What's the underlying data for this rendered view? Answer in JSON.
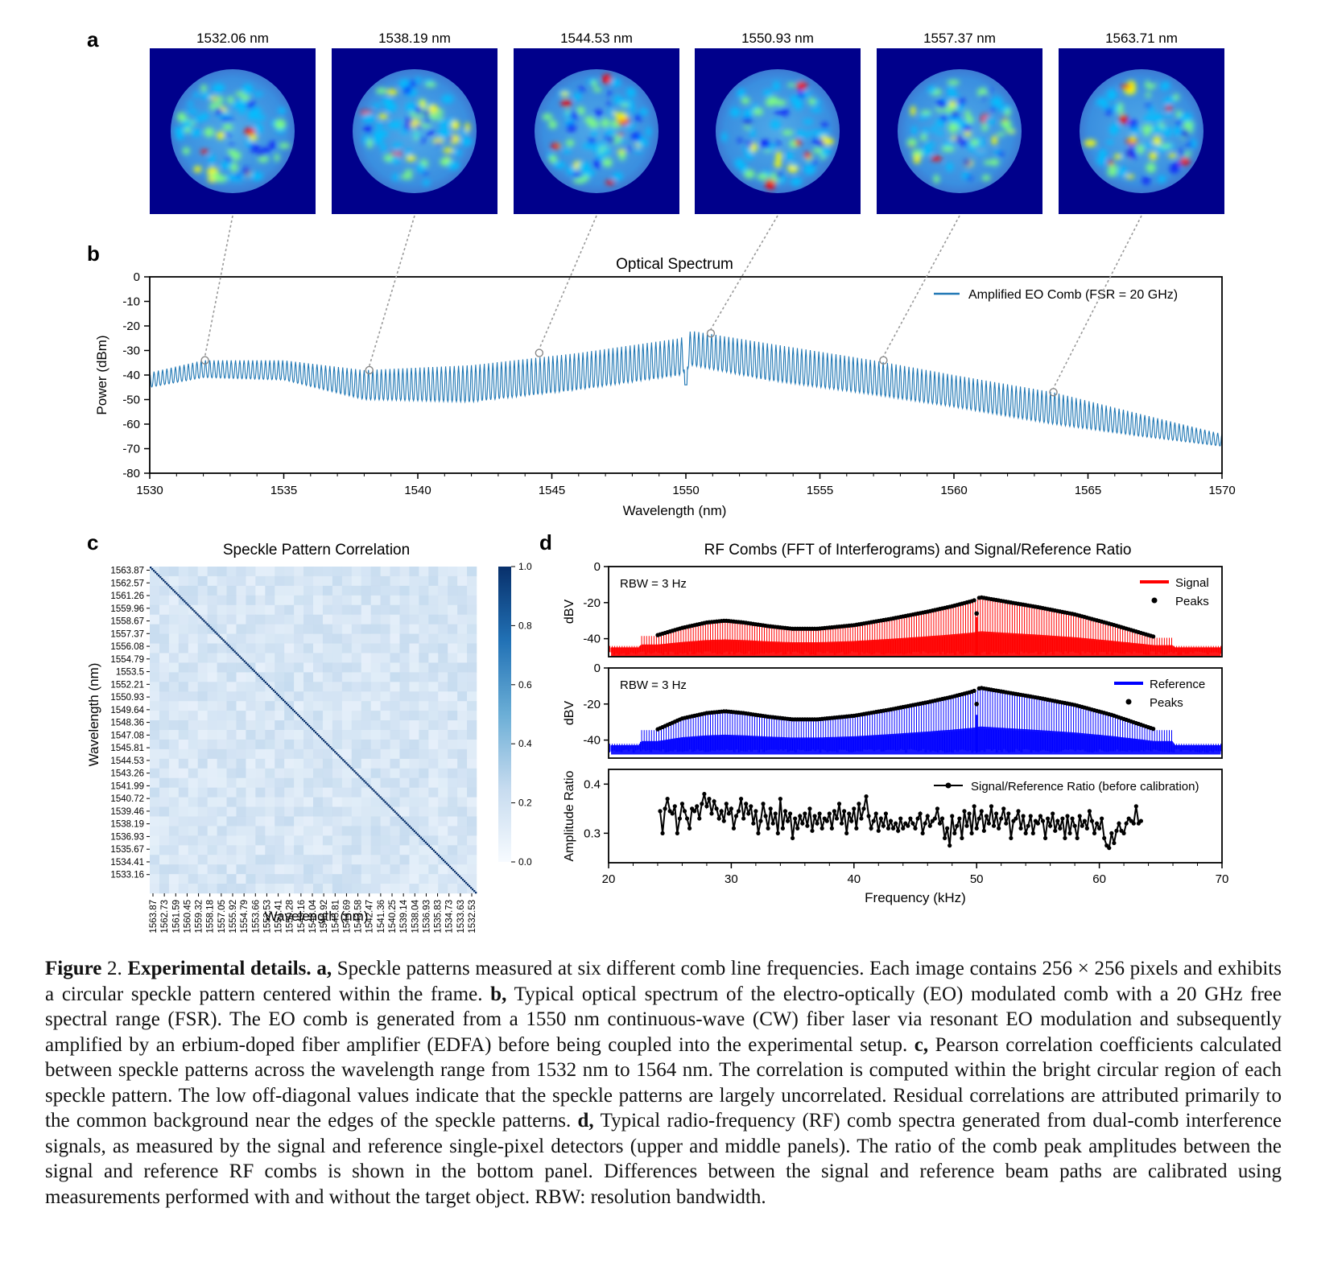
{
  "panel_labels": {
    "a": "a",
    "b": "b",
    "c": "c",
    "d": "d"
  },
  "panel_a": {
    "wavelengths": [
      "1532.06 nm",
      "1538.19 nm",
      "1544.53 nm",
      "1550.93 nm",
      "1557.37 nm",
      "1563.71 nm"
    ],
    "colormap": [
      "#00008b",
      "#0000ff",
      "#00bfff",
      "#7fff7f",
      "#ffff00",
      "#ff0000"
    ]
  },
  "chart_data": [
    {
      "id": "optical-spectrum",
      "type": "line",
      "title": "Optical Spectrum",
      "xlabel": "Wavelength (nm)",
      "ylabel": "Power (dBm)",
      "xlim": [
        1530,
        1570
      ],
      "ylim": [
        -80,
        0
      ],
      "xticks": [
        1530,
        1535,
        1540,
        1545,
        1550,
        1555,
        1560,
        1565,
        1570
      ],
      "yticks": [
        0,
        -10,
        -20,
        -30,
        -40,
        -50,
        -60,
        -70,
        -80
      ],
      "legend": "top-right",
      "series": [
        {
          "name": "Amplified EO Comb (FSR = 20 GHz)",
          "color": "#1f77b4",
          "envelope_peak": {
            "x": [
              1530,
              1532,
              1535,
              1538,
              1542,
              1546,
              1549.8,
              1550.2,
              1553,
              1557,
              1560,
              1563.7,
              1567,
              1570
            ],
            "y": [
              -39,
              -34,
              -34,
              -38,
              -36,
              -31,
              -25,
              -22,
              -27,
              -34,
              -40,
              -47,
              -56,
              -64
            ]
          },
          "envelope_trough": {
            "x": [
              1530,
              1532,
              1535,
              1538,
              1542,
              1546,
              1549.8,
              1550.2,
              1553,
              1557,
              1560,
              1563.7,
              1567,
              1570
            ],
            "y": [
              -45,
              -41,
              -42,
              -50,
              -51,
              -46,
              -40,
              -36,
              -42,
              -48,
              -53,
              -60,
              -65,
              -69
            ]
          },
          "line_spacing_nm": 0.16
        }
      ],
      "markers": [
        {
          "x": 1532.06,
          "y": -34
        },
        {
          "x": 1538.19,
          "y": -38
        },
        {
          "x": 1544.53,
          "y": -31
        },
        {
          "x": 1550.93,
          "y": -23
        },
        {
          "x": 1557.37,
          "y": -34
        },
        {
          "x": 1563.71,
          "y": -47
        }
      ]
    },
    {
      "id": "speckle-correlation",
      "type": "heatmap",
      "title": "Speckle Pattern Correlation",
      "xlabel": "Wavelength (nm)",
      "ylabel": "Wavelength (nm)",
      "size": 202,
      "diagonal": 1.0,
      "offdiag_range": [
        0.08,
        0.26
      ],
      "y_ticklabels": [
        "1563.87",
        "1562.57",
        "1561.26",
        "1559.96",
        "1558.67",
        "1557.37",
        "1556.08",
        "1554.79",
        "1553.5",
        "1552.21",
        "1550.93",
        "1549.64",
        "1548.36",
        "1547.08",
        "1545.81",
        "1544.53",
        "1543.26",
        "1541.99",
        "1540.72",
        "1539.46",
        "1538.19",
        "1536.93",
        "1535.67",
        "1534.41",
        "1533.16"
      ],
      "x_ticklabels": [
        "1563.87",
        "1562.73",
        "1561.59",
        "1560.45",
        "1559.32",
        "1558.18",
        "1557.05",
        "1555.92",
        "1554.79",
        "1553.66",
        "1552.53",
        "1551.41",
        "1550.28",
        "1549.16",
        "1548.04",
        "1546.92",
        "1545.81",
        "1544.69",
        "1543.58",
        "1542.47",
        "1541.36",
        "1540.25",
        "1539.14",
        "1538.04",
        "1536.93",
        "1535.83",
        "1534.73",
        "1533.63",
        "1532.53"
      ],
      "colorbar": {
        "ticks": [
          "1.0",
          "0.8",
          "0.6",
          "0.4",
          "0.2",
          "0.0"
        ],
        "range": [
          0,
          1
        ],
        "color_low": "#f7fbff",
        "color_high": "#08306b"
      }
    },
    {
      "id": "rf-signal",
      "type": "line",
      "title": "RF Combs (FFT of Interferograms) and Signal/Reference Ratio",
      "xlabel": "",
      "ylabel": "dBV",
      "xlim": [
        20,
        70
      ],
      "ylim": [
        -50,
        0
      ],
      "yticks": [
        "0",
        "-20",
        "-40"
      ],
      "annotation": "RBW = 3 Hz",
      "legend": "top-right",
      "series": [
        {
          "name": "Signal",
          "color": "#ff0000",
          "floor": -46
        },
        {
          "name": "Peaks",
          "color": "#000000",
          "x": [
            24,
            26,
            28,
            29.5,
            31,
            33,
            35,
            37,
            40,
            43,
            46,
            48,
            49.7,
            50.3,
            52,
            55,
            58,
            61,
            64.5
          ],
          "y": [
            -38,
            -34,
            -31,
            -30,
            -31,
            -33,
            -34.5,
            -34.5,
            -32.5,
            -29,
            -25,
            -22,
            -19,
            -17,
            -19,
            -22.5,
            -26.5,
            -32,
            -39
          ]
        }
      ]
    },
    {
      "id": "rf-reference",
      "type": "line",
      "xlabel": "",
      "ylabel": "dBV",
      "xlim": [
        20,
        70
      ],
      "ylim": [
        -50,
        0
      ],
      "yticks": [
        "0",
        "-20",
        "-40"
      ],
      "annotation": "RBW = 3 Hz",
      "legend": "top-right",
      "series": [
        {
          "name": "Reference",
          "color": "#0000ff",
          "floor": -44
        },
        {
          "name": "Peaks",
          "color": "#000000",
          "x": [
            24,
            26,
            28,
            29.5,
            31,
            33,
            35,
            37,
            40,
            43,
            46,
            48,
            49.7,
            50.3,
            52,
            55,
            58,
            61,
            64.5
          ],
          "y": [
            -34,
            -28,
            -25,
            -24,
            -25,
            -27,
            -28.5,
            -28.5,
            -26.5,
            -23,
            -19,
            -16,
            -13,
            -11,
            -13,
            -16.5,
            -20.5,
            -26,
            -34
          ]
        }
      ]
    },
    {
      "id": "amplitude-ratio",
      "type": "line",
      "xlabel": "Frequency (kHz)",
      "ylabel": "Amplitude Ratio",
      "xlim": [
        20,
        70
      ],
      "ylim": [
        0.24,
        0.43
      ],
      "xticks": [
        20,
        30,
        40,
        50,
        60,
        70
      ],
      "yticks": [
        "0.4",
        "0.3"
      ],
      "legend": "top-right",
      "series": [
        {
          "name": "Signal/Reference Ratio (before calibration)",
          "color": "#000000",
          "x_start": 24.2,
          "x_step": 0.2,
          "y": [
            0.345,
            0.3,
            0.35,
            0.37,
            0.345,
            0.34,
            0.355,
            0.3,
            0.33,
            0.36,
            0.345,
            0.33,
            0.31,
            0.35,
            0.345,
            0.355,
            0.33,
            0.36,
            0.38,
            0.355,
            0.37,
            0.34,
            0.365,
            0.35,
            0.33,
            0.345,
            0.325,
            0.36,
            0.34,
            0.35,
            0.31,
            0.335,
            0.345,
            0.37,
            0.33,
            0.36,
            0.34,
            0.355,
            0.32,
            0.345,
            0.3,
            0.325,
            0.36,
            0.335,
            0.31,
            0.35,
            0.32,
            0.34,
            0.3,
            0.37,
            0.31,
            0.345,
            0.325,
            0.34,
            0.29,
            0.33,
            0.31,
            0.335,
            0.32,
            0.34,
            0.315,
            0.35,
            0.305,
            0.335,
            0.32,
            0.34,
            0.31,
            0.33,
            0.325,
            0.34,
            0.31,
            0.345,
            0.33,
            0.36,
            0.32,
            0.345,
            0.3,
            0.34,
            0.325,
            0.35,
            0.31,
            0.36,
            0.33,
            0.35,
            0.375,
            0.335,
            0.31,
            0.325,
            0.34,
            0.305,
            0.33,
            0.315,
            0.34,
            0.31,
            0.325,
            0.31,
            0.32,
            0.305,
            0.33,
            0.31,
            0.32,
            0.315,
            0.33,
            0.32,
            0.31,
            0.33,
            0.34,
            0.3,
            0.32,
            0.335,
            0.315,
            0.325,
            0.33,
            0.35,
            0.32,
            0.33,
            0.29,
            0.31,
            0.275,
            0.335,
            0.3,
            0.315,
            0.33,
            0.29,
            0.345,
            0.315,
            0.34,
            0.3,
            0.355,
            0.31,
            0.33,
            0.345,
            0.305,
            0.335,
            0.32,
            0.355,
            0.315,
            0.34,
            0.31,
            0.33,
            0.35,
            0.32,
            0.34,
            0.29,
            0.325,
            0.33,
            0.345,
            0.31,
            0.335,
            0.3,
            0.315,
            0.335,
            0.3,
            0.325,
            0.32,
            0.335,
            0.325,
            0.29,
            0.33,
            0.315,
            0.34,
            0.305,
            0.325,
            0.31,
            0.33,
            0.29,
            0.335,
            0.3,
            0.33,
            0.315,
            0.29,
            0.335,
            0.315,
            0.325,
            0.31,
            0.345,
            0.325,
            0.3,
            0.32,
            0.31,
            0.33,
            0.29,
            0.275,
            0.27,
            0.3,
            0.28,
            0.305,
            0.32,
            0.305,
            0.3,
            0.32,
            0.33,
            0.325,
            0.32,
            0.355,
            0.32,
            0.325
          ]
        }
      ]
    }
  ],
  "caption": {
    "fig_label": "Figure",
    "fig_number": " 2. ",
    "title": "Experimental details.",
    "parts": [
      {
        "label": " a,",
        "text": " Speckle patterns measured at six different comb line frequencies. Each image contains 256 × 256 pixels and exhibits a circular speckle pattern centered within the frame."
      },
      {
        "label": " b,",
        "text": " Typical optical spectrum of the electro-optically (EO) modulated comb with a 20 GHz free spectral range (FSR). The EO comb is generated from a 1550 nm continuous-wave (CW) fiber laser via resonant EO modulation and subsequently amplified by an erbium-doped fiber amplifier (EDFA) before being coupled into the experimental setup."
      },
      {
        "label": " c,",
        "text": " Pearson correlation coefficients calculated between speckle patterns across the wavelength range from 1532 nm to 1564 nm. The correlation is computed within the bright circular region of each speckle pattern. The low off-diagonal values indicate that the speckle patterns are largely uncorrelated. Residual correlations are attributed primarily to the common background near the edges of the speckle patterns."
      },
      {
        "label": " d,",
        "text": " Typical radio-frequency (RF) comb spectra generated from dual-comb interference signals, as measured by the signal and reference single-pixel detectors (upper and middle panels). The ratio of the comb peak amplitudes between the signal and reference RF combs is shown in the bottom panel. Differences between the signal and reference beam paths are calibrated using measurements performed with and without the target object. RBW: resolution bandwidth."
      }
    ]
  }
}
